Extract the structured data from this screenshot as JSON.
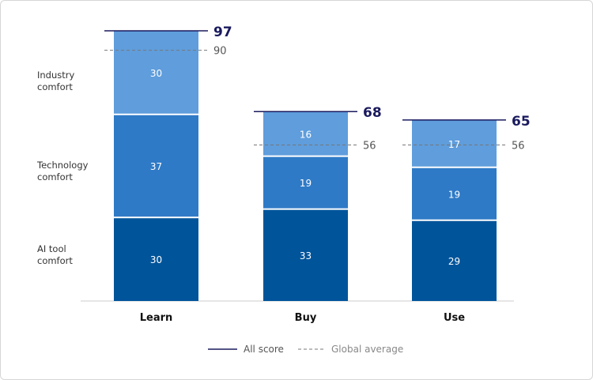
{
  "chart_data": {
    "type": "bar",
    "stacked": true,
    "categories": [
      "Learn",
      "Buy",
      "Use"
    ],
    "series": [
      {
        "name": "AI tool comfort",
        "values": [
          30,
          33,
          29
        ],
        "color": "#00549a"
      },
      {
        "name": "Technology comfort",
        "values": [
          37,
          19,
          19
        ],
        "color": "#2f7ac6"
      },
      {
        "name": "Industry comfort",
        "values": [
          30,
          16,
          17
        ],
        "color": "#5f9ddc"
      }
    ],
    "all_score": [
      97,
      68,
      65
    ],
    "global_average": [
      90,
      56,
      56
    ],
    "legend": {
      "all_score": "All score",
      "global_average": "Global average",
      "placement": "bottom"
    },
    "ylim": [
      0,
      97
    ],
    "grid": false,
    "colors": {
      "all_score_line": "#1a1a5e",
      "average_line": "#777777",
      "axis": "#cccccc"
    }
  }
}
